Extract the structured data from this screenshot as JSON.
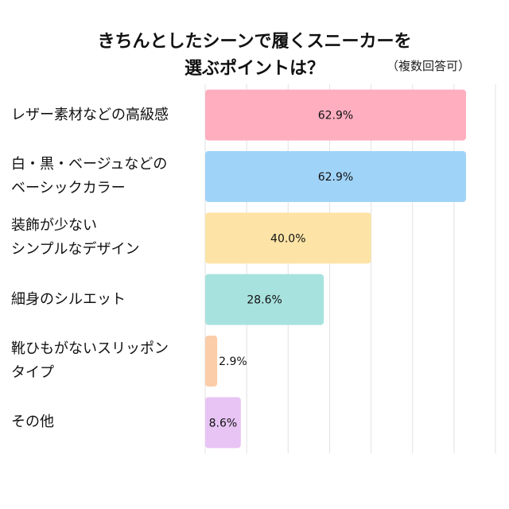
{
  "chart_data": {
    "type": "bar",
    "orientation": "horizontal",
    "title": [
      "きちんとしたシーンで履くスニーカーを",
      "選ぶポイントは？"
    ],
    "subtitle": "（複数回答可）",
    "categories": [
      "レザー素材などの高級感",
      "白・黒・ベージュなどの\nベーシックカラー",
      "装飾が少ない\nシンプルなデザイン",
      "細身のシルエット",
      "靴ひもがないスリッポン\nタイプ",
      "その他"
    ],
    "values": [
      62.9,
      62.9,
      40.0,
      28.6,
      2.9,
      8.6
    ],
    "value_labels": [
      "62.9%",
      "62.9%",
      "40.0%",
      "28.6%",
      "2.9%",
      "8.6%"
    ],
    "colors": [
      "#ffaec0",
      "#a0d3f8",
      "#fde4a6",
      "#a8e2de",
      "#fbcda8",
      "#e8c4f5"
    ],
    "xlim": [
      0,
      70
    ],
    "grid": true
  }
}
